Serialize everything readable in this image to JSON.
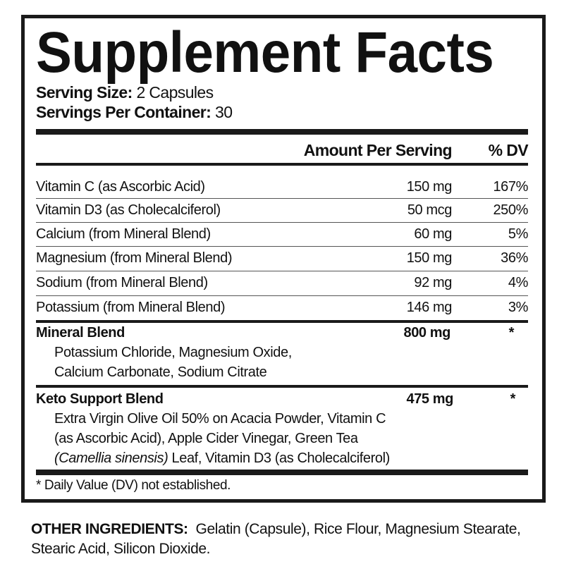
{
  "title": "Supplement Facts",
  "serving_size": {
    "label": "Serving Size:",
    "value": "2 Capsules"
  },
  "servings_per_container": {
    "label": "Servings Per Container:",
    "value": "30"
  },
  "headers": {
    "amount": "Amount Per Serving",
    "dv": "% DV"
  },
  "nutrients": [
    {
      "name": "Vitamin C (as Ascorbic Acid)",
      "amount": "150 mg",
      "dv": "167%"
    },
    {
      "name": "Vitamin D3 (as Cholecalciferol)",
      "amount": "50 mcg",
      "dv": "250%"
    },
    {
      "name": "Calcium (from Mineral Blend)",
      "amount": "60 mg",
      "dv": "5%"
    },
    {
      "name": "Magnesium (from Mineral Blend)",
      "amount": "150 mg",
      "dv": "36%"
    },
    {
      "name": "Sodium (from Mineral Blend)",
      "amount": "92 mg",
      "dv": "4%"
    },
    {
      "name": "Potassium (from Mineral Blend)",
      "amount": "146 mg",
      "dv": "3%"
    }
  ],
  "blends": [
    {
      "name": "Mineral Blend",
      "amount": "800 mg",
      "dv": "*",
      "lines": [
        "Potassium Chloride, Magnesium Oxide,",
        "Calcium Carbonate, Sodium Citrate"
      ]
    },
    {
      "name": "Keto Support Blend",
      "amount": "475 mg",
      "dv": "*",
      "lines": [
        "Extra Virgin Olive Oil 50% on Acacia Powder, Vitamin C",
        "(as Ascorbic Acid), Apple Cider Vinegar, Green Tea"
      ],
      "last_line_italic": "(Camellia sinensis)",
      "last_line_rest": " Leaf, Vitamin D3 (as Cholecalciferol)"
    }
  ],
  "footnote": "* Daily Value (DV) not established.",
  "other_ingredients": {
    "label": "OTHER INGREDIENTS:",
    "value": "Gelatin (Capsule), Rice Flour, Magnesium Stearate, Stearic Acid, Silicon Dioxide."
  }
}
